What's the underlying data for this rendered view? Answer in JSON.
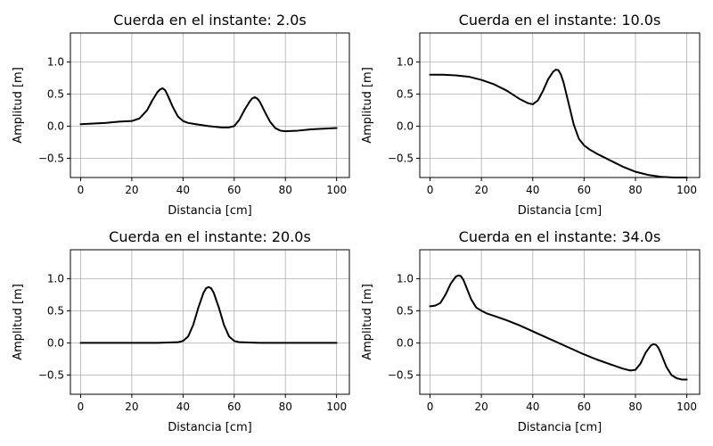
{
  "chart_data": [
    {
      "type": "line",
      "title": "Cuerda en el instante: 2.0s",
      "xlabel": "Distancia [cm]",
      "ylabel": "Amplitud [m]",
      "xlim": [
        -4,
        105
      ],
      "ylim": [
        -0.8,
        1.45
      ],
      "xticks": [
        0,
        20,
        40,
        60,
        80,
        100
      ],
      "yticks": [
        -0.5,
        0.0,
        0.5,
        1.0
      ],
      "xtick_labels": [
        "0",
        "20",
        "40",
        "60",
        "80",
        "100"
      ],
      "ytick_labels": [
        "−0.5",
        "0.0",
        "0.5",
        "1.0"
      ],
      "grid": true,
      "series": [
        {
          "color": "#000000",
          "x": [
            0,
            5,
            10,
            15,
            20,
            23,
            26,
            28,
            30,
            31,
            32,
            33,
            34,
            36,
            38,
            40,
            42,
            45,
            50,
            55,
            58,
            60,
            62,
            64,
            66,
            67,
            68,
            69,
            70,
            72,
            74,
            76,
            78,
            80,
            85,
            90,
            95,
            100
          ],
          "y": [
            0.03,
            0.04,
            0.05,
            0.07,
            0.08,
            0.12,
            0.25,
            0.4,
            0.53,
            0.57,
            0.59,
            0.56,
            0.48,
            0.3,
            0.15,
            0.08,
            0.05,
            0.03,
            0.0,
            -0.02,
            -0.02,
            0.0,
            0.1,
            0.25,
            0.38,
            0.43,
            0.45,
            0.43,
            0.38,
            0.22,
            0.07,
            -0.03,
            -0.07,
            -0.08,
            -0.07,
            -0.05,
            -0.04,
            -0.03
          ]
        }
      ]
    },
    {
      "type": "line",
      "title": "Cuerda en el instante: 10.0s",
      "xlabel": "Distancia [cm]",
      "ylabel": "Amplitud [m]",
      "xlim": [
        -4,
        105
      ],
      "ylim": [
        -0.8,
        1.45
      ],
      "xticks": [
        0,
        20,
        40,
        60,
        80,
        100
      ],
      "yticks": [
        -0.5,
        0.0,
        0.5,
        1.0
      ],
      "xtick_labels": [
        "0",
        "20",
        "40",
        "60",
        "80",
        "100"
      ],
      "ytick_labels": [
        "−0.5",
        "0.0",
        "0.5",
        "1.0"
      ],
      "grid": true,
      "series": [
        {
          "color": "#000000",
          "x": [
            0,
            5,
            10,
            15,
            20,
            25,
            30,
            35,
            38,
            40,
            42,
            44,
            46,
            48,
            49,
            50,
            51,
            52,
            54,
            56,
            58,
            60,
            62,
            65,
            70,
            75,
            80,
            85,
            90,
            95,
            100
          ],
          "y": [
            0.8,
            0.8,
            0.79,
            0.77,
            0.72,
            0.65,
            0.55,
            0.42,
            0.36,
            0.34,
            0.4,
            0.55,
            0.73,
            0.85,
            0.88,
            0.87,
            0.8,
            0.68,
            0.35,
            0.02,
            -0.2,
            -0.3,
            -0.36,
            -0.43,
            -0.53,
            -0.63,
            -0.71,
            -0.76,
            -0.79,
            -0.8,
            -0.8
          ]
        }
      ]
    },
    {
      "type": "line",
      "title": "Cuerda en el instante: 20.0s",
      "xlabel": "Distancia [cm]",
      "ylabel": "Amplitud [m]",
      "xlim": [
        -4,
        105
      ],
      "ylim": [
        -0.8,
        1.45
      ],
      "xticks": [
        0,
        20,
        40,
        60,
        80,
        100
      ],
      "yticks": [
        -0.5,
        0.0,
        0.5,
        1.0
      ],
      "xtick_labels": [
        "0",
        "20",
        "40",
        "60",
        "80",
        "100"
      ],
      "ytick_labels": [
        "−0.5",
        "0.0",
        "0.5",
        "1.0"
      ],
      "grid": true,
      "series": [
        {
          "color": "#000000",
          "x": [
            0,
            10,
            20,
            30,
            38,
            40,
            42,
            44,
            46,
            48,
            49,
            50,
            51,
            52,
            54,
            56,
            58,
            60,
            62,
            70,
            80,
            90,
            100
          ],
          "y": [
            0.0,
            0.0,
            0.0,
            0.0,
            0.01,
            0.03,
            0.1,
            0.28,
            0.55,
            0.78,
            0.85,
            0.87,
            0.85,
            0.78,
            0.55,
            0.28,
            0.1,
            0.03,
            0.01,
            0.0,
            0.0,
            0.0,
            0.0
          ]
        }
      ]
    },
    {
      "type": "line",
      "title": "Cuerda en el instante: 34.0s",
      "xlabel": "Distancia [cm]",
      "ylabel": "Amplitud [m]",
      "xlim": [
        -4,
        105
      ],
      "ylim": [
        -0.8,
        1.45
      ],
      "xticks": [
        0,
        20,
        40,
        60,
        80,
        100
      ],
      "yticks": [
        -0.5,
        0.0,
        0.5,
        1.0
      ],
      "xtick_labels": [
        "0",
        "20",
        "40",
        "60",
        "80",
        "100"
      ],
      "ytick_labels": [
        "−0.5",
        "0.0",
        "0.5",
        "1.0"
      ],
      "grid": true,
      "series": [
        {
          "color": "#000000",
          "x": [
            0,
            2,
            4,
            6,
            8,
            10,
            11,
            12,
            13,
            14,
            16,
            18,
            20,
            22,
            25,
            30,
            35,
            40,
            45,
            50,
            55,
            60,
            65,
            70,
            75,
            78,
            80,
            82,
            84,
            86,
            87,
            88,
            89,
            90,
            92,
            94,
            96,
            98,
            100
          ],
          "y": [
            0.57,
            0.58,
            0.62,
            0.75,
            0.92,
            1.03,
            1.05,
            1.04,
            0.98,
            0.88,
            0.68,
            0.55,
            0.5,
            0.46,
            0.42,
            0.35,
            0.27,
            0.18,
            0.09,
            0.0,
            -0.09,
            -0.18,
            -0.26,
            -0.33,
            -0.4,
            -0.43,
            -0.42,
            -0.32,
            -0.15,
            -0.04,
            -0.02,
            -0.03,
            -0.08,
            -0.17,
            -0.37,
            -0.5,
            -0.55,
            -0.57,
            -0.57
          ]
        }
      ]
    }
  ]
}
